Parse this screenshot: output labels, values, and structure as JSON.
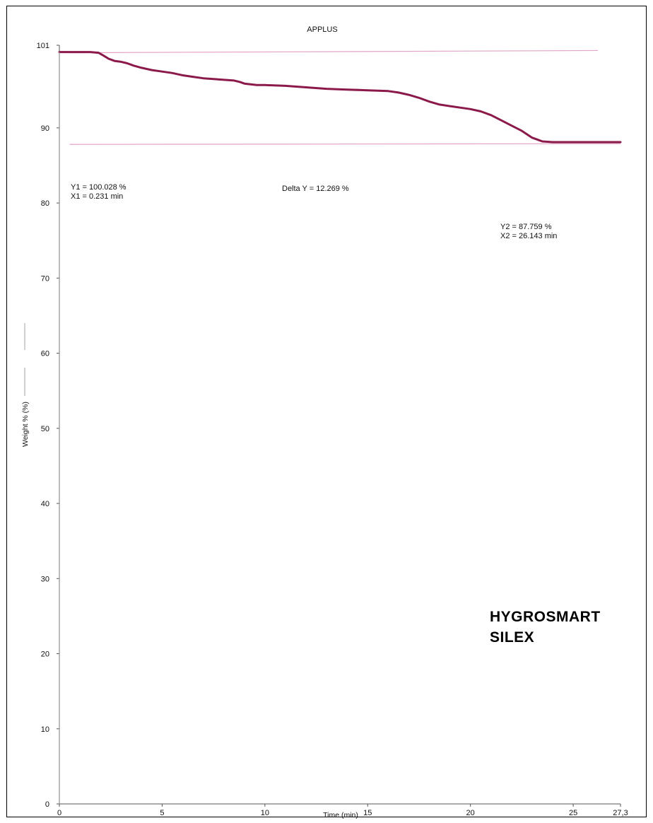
{
  "chart_data": {
    "type": "line",
    "title": "APPLUS",
    "xlabel": "Time (min)",
    "ylabel": "Weight % (%)",
    "xlim": [
      0,
      27.3
    ],
    "ylim": [
      0,
      101
    ],
    "x_ticks": [
      {
        "value": 0,
        "label": "0"
      },
      {
        "value": 5,
        "label": "5"
      },
      {
        "value": 10,
        "label": "10"
      },
      {
        "value": 15,
        "label": "15"
      },
      {
        "value": 20,
        "label": "20"
      },
      {
        "value": 25,
        "label": "25"
      },
      {
        "value": 27.3,
        "label": "27,3"
      }
    ],
    "y_ticks": [
      {
        "value": 0,
        "label": "0"
      },
      {
        "value": 10,
        "label": "10"
      },
      {
        "value": 20,
        "label": "20"
      },
      {
        "value": 30,
        "label": "30"
      },
      {
        "value": 40,
        "label": "40"
      },
      {
        "value": 50,
        "label": "50"
      },
      {
        "value": 60,
        "label": "60"
      },
      {
        "value": 70,
        "label": "70"
      },
      {
        "value": 80,
        "label": "80"
      },
      {
        "value": 90,
        "label": "90"
      },
      {
        "value": 101,
        "label": "101"
      }
    ],
    "grid": false,
    "series": [
      {
        "color": "#8b1a4a",
        "x": [
          0,
          0.5,
          1.0,
          1.5,
          1.9,
          2.1,
          2.4,
          2.7,
          3.0,
          3.3,
          3.6,
          4.0,
          4.5,
          5.0,
          5.5,
          6.0,
          6.5,
          7.0,
          7.5,
          8.0,
          8.5,
          8.8,
          9.0,
          9.3,
          9.6,
          10.0,
          11.0,
          12.0,
          13.0,
          14.0,
          15.0,
          16.0,
          16.5,
          17.0,
          17.5,
          18.0,
          18.5,
          19.0,
          19.5,
          20.0,
          20.5,
          21.0,
          21.5,
          22.0,
          22.5,
          23.0,
          23.5,
          24.0,
          25.0,
          26.0,
          27.0,
          27.3
        ],
        "values": [
          100.1,
          100.1,
          100.1,
          100.1,
          100.0,
          99.7,
          99.2,
          98.9,
          98.8,
          98.6,
          98.3,
          98.0,
          97.7,
          97.5,
          97.3,
          97.0,
          96.8,
          96.6,
          96.5,
          96.4,
          96.3,
          96.1,
          95.9,
          95.8,
          95.7,
          95.7,
          95.6,
          95.4,
          95.2,
          95.1,
          95.0,
          94.9,
          94.7,
          94.4,
          94.0,
          93.5,
          93.1,
          92.9,
          92.7,
          92.5,
          92.2,
          91.7,
          91.0,
          90.3,
          89.6,
          88.7,
          88.2,
          88.1,
          88.1,
          88.1,
          88.1,
          88.1
        ]
      }
    ],
    "reference_lines": [
      {
        "color": "#e2a3c4",
        "x": [
          0.5,
          26.2
        ],
        "values": [
          100.0,
          100.3
        ]
      },
      {
        "color": "#e2a3c4",
        "x": [
          0.5,
          27.3
        ],
        "values": [
          87.8,
          87.9
        ]
      }
    ],
    "annotations": [
      {
        "lines": [
          "Y1 = 100.028 %",
          "X1 = 0.231 min"
        ]
      },
      {
        "lines": [
          "Delta Y = 12.269 %"
        ]
      },
      {
        "lines": [
          "Y2 = 87.759 %",
          "X2 = 26.143 min"
        ]
      }
    ]
  },
  "overlay": {
    "line1": "HYGROSMART",
    "line2": "SILEX"
  }
}
